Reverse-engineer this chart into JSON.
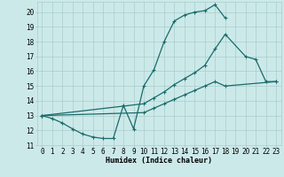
{
  "background_color": "#cce9e9",
  "grid_color": "#aacccc",
  "line_color": "#1a6b6b",
  "marker": "+",
  "marker_size": 3,
  "linewidth": 0.9,
  "xlabel": "Humidex (Indice chaleur)",
  "xlabel_fontsize": 6,
  "tick_fontsize": 5.5,
  "xlim": [
    -0.5,
    23.5
  ],
  "ylim": [
    11,
    20.7
  ],
  "yticks": [
    11,
    12,
    13,
    14,
    15,
    16,
    17,
    18,
    19,
    20
  ],
  "xticks": [
    0,
    1,
    2,
    3,
    4,
    5,
    6,
    7,
    8,
    9,
    10,
    11,
    12,
    13,
    14,
    15,
    16,
    17,
    18,
    19,
    20,
    21,
    22,
    23
  ],
  "curve1_x": [
    0,
    1,
    2,
    3,
    4,
    5,
    6,
    7,
    8,
    9,
    10,
    11,
    12,
    13,
    14,
    15,
    16,
    17,
    18
  ],
  "curve1_y": [
    13.0,
    12.8,
    12.5,
    12.1,
    11.75,
    11.55,
    11.45,
    11.45,
    13.7,
    12.1,
    15.0,
    16.1,
    18.0,
    19.4,
    19.8,
    20.0,
    20.1,
    20.5,
    19.6
  ],
  "curve2_x": [
    0,
    10,
    11,
    12,
    13,
    14,
    15,
    16,
    17,
    18,
    20,
    21,
    22,
    23
  ],
  "curve2_y": [
    13.0,
    13.8,
    14.2,
    14.6,
    15.1,
    15.5,
    15.9,
    16.4,
    17.5,
    18.5,
    17.0,
    16.8,
    15.3,
    15.3
  ],
  "curve3_x": [
    0,
    10,
    11,
    12,
    13,
    14,
    15,
    16,
    17,
    18,
    23
  ],
  "curve3_y": [
    13.0,
    13.2,
    13.5,
    13.8,
    14.1,
    14.4,
    14.7,
    15.0,
    15.3,
    15.0,
    15.3
  ]
}
